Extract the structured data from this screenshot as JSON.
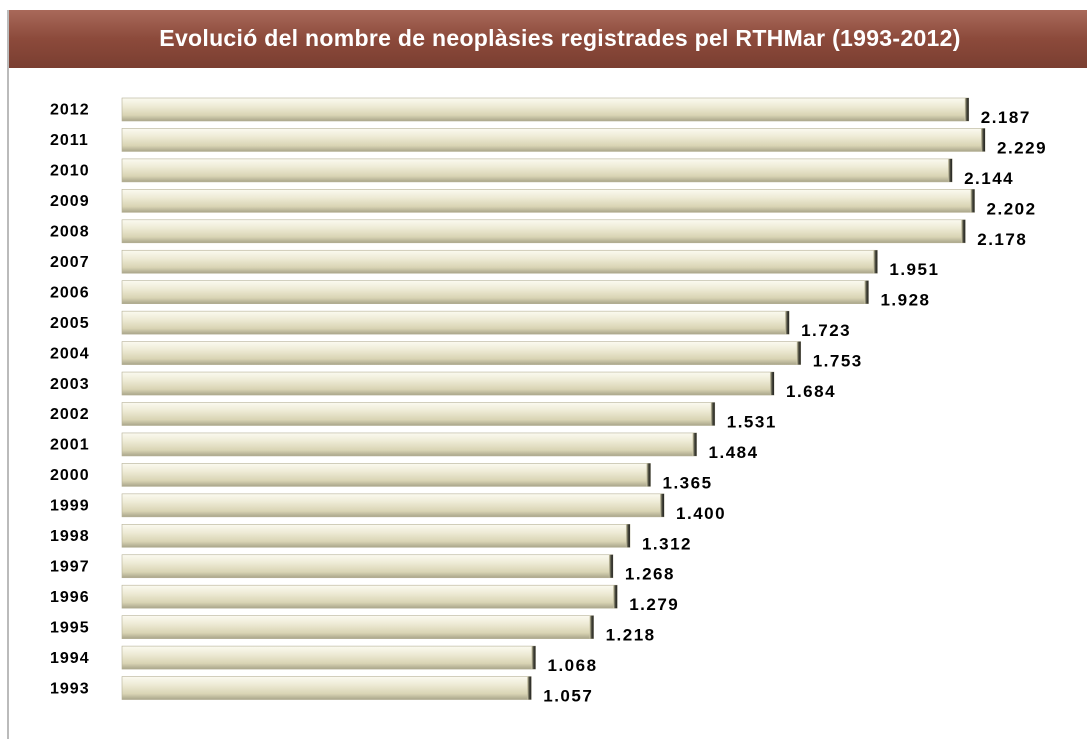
{
  "chart_data": {
    "type": "bar",
    "orientation": "horizontal",
    "title": "Evolució del nombre de neoplàsies registrades pel RTHMar (1993-2012)",
    "categories": [
      "2012",
      "2011",
      "2010",
      "2009",
      "2008",
      "2007",
      "2006",
      "2005",
      "2004",
      "2003",
      "2002",
      "2001",
      "2000",
      "1999",
      "1998",
      "1997",
      "1996",
      "1995",
      "1994",
      "1993"
    ],
    "values": [
      2187,
      2229,
      2144,
      2202,
      2178,
      1951,
      1928,
      1723,
      1753,
      1684,
      1531,
      1484,
      1365,
      1400,
      1312,
      1268,
      1279,
      1218,
      1068,
      1057
    ],
    "value_labels": [
      "2.187",
      "2.229",
      "2.144",
      "2.202",
      "2.178",
      "1.951",
      "1.928",
      "1.723",
      "1.753",
      "1.684",
      "1.531",
      "1.484",
      "1.365",
      "1.400",
      "1.312",
      "1.268",
      "1.279",
      "1.218",
      "1.068",
      "1.057"
    ],
    "color": "#e6e2c8"
  }
}
